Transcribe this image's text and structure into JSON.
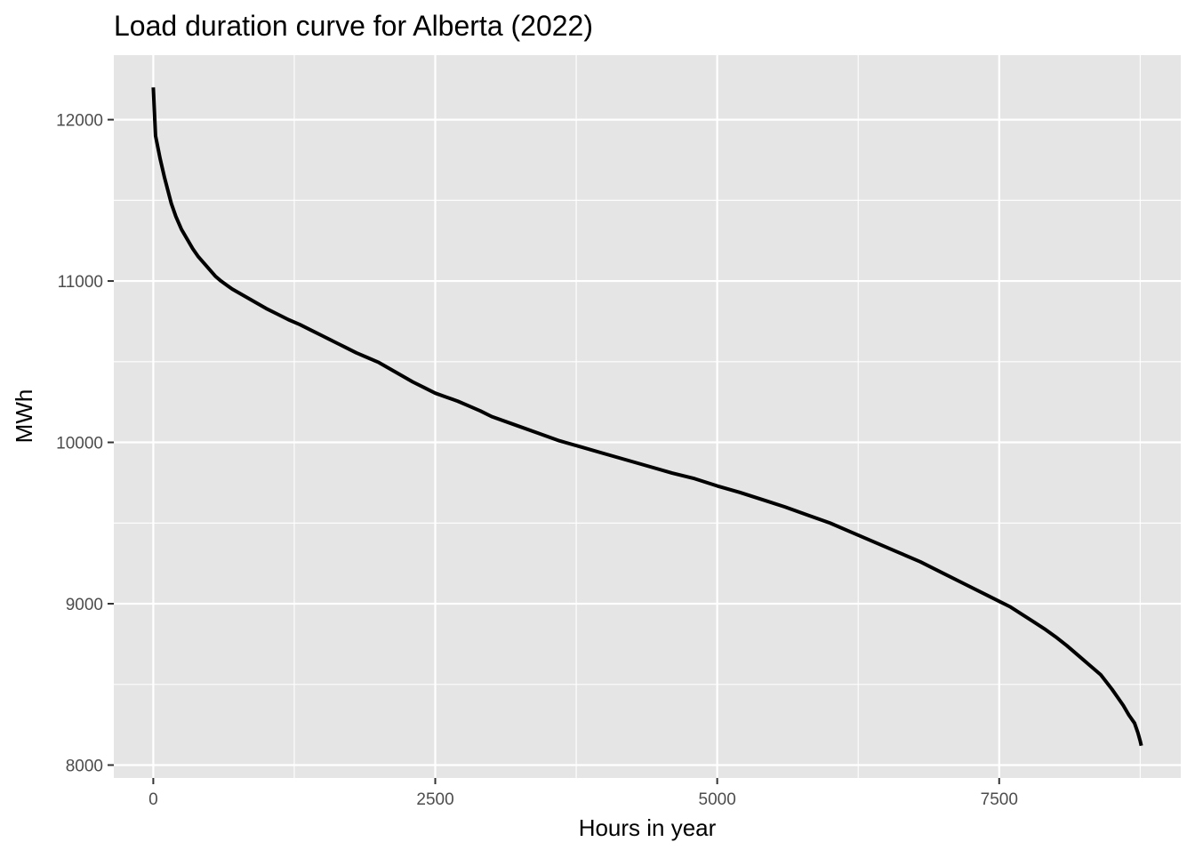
{
  "chart_data": {
    "type": "line",
    "title": "Load duration curve for Alberta (2022)",
    "xlabel": "Hours in year",
    "ylabel": "MWh",
    "xlim": [
      -350,
      9110
    ],
    "ylim": [
      7920,
      12400
    ],
    "x_major_ticks": [
      0,
      2500,
      5000,
      7500
    ],
    "x_tick_labels": [
      "0",
      "2500",
      "5000",
      "7500"
    ],
    "x_minor_ticks": [
      1250,
      3750,
      6250,
      8750
    ],
    "y_major_ticks": [
      8000,
      9000,
      10000,
      11000,
      12000
    ],
    "y_tick_labels": [
      "8000",
      "9000",
      "10000",
      "11000",
      "12000"
    ],
    "y_minor_ticks": [
      8500,
      9500,
      10500,
      11500
    ],
    "grid": true,
    "legend": "none",
    "colors": {
      "panel_background": "#e5e5e5",
      "gridline": "#ffffff",
      "line": "#000000",
      "tick_label": "#4d4d4d"
    },
    "series": [
      {
        "x": [
          0,
          10,
          20,
          40,
          60,
          80,
          100,
          130,
          160,
          200,
          250,
          300,
          350,
          400,
          450,
          500,
          550,
          600,
          650,
          700,
          800,
          900,
          1000,
          1100,
          1200,
          1300,
          1400,
          1500,
          1600,
          1700,
          1800,
          1900,
          2000,
          2100,
          2200,
          2300,
          2400,
          2500,
          2600,
          2700,
          2800,
          2900,
          3000,
          3200,
          3400,
          3600,
          3800,
          4000,
          4200,
          4400,
          4600,
          4800,
          5000,
          5200,
          5400,
          5600,
          5800,
          6000,
          6200,
          6400,
          6600,
          6800,
          7000,
          7200,
          7400,
          7500,
          7600,
          7700,
          7800,
          7900,
          8000,
          8100,
          8200,
          8300,
          8400,
          8500,
          8550,
          8600,
          8650,
          8700,
          8730,
          8750,
          8760
        ],
        "y": [
          12200,
          12050,
          11900,
          11830,
          11760,
          11700,
          11640,
          11560,
          11480,
          11400,
          11320,
          11260,
          11200,
          11150,
          11110,
          11070,
          11030,
          11000,
          10975,
          10950,
          10910,
          10870,
          10830,
          10795,
          10760,
          10730,
          10695,
          10660,
          10625,
          10590,
          10555,
          10525,
          10495,
          10455,
          10415,
          10375,
          10340,
          10305,
          10280,
          10255,
          10225,
          10195,
          10160,
          10110,
          10060,
          10010,
          9970,
          9930,
          9890,
          9850,
          9810,
          9775,
          9730,
          9690,
          9645,
          9600,
          9550,
          9500,
          9440,
          9380,
          9320,
          9260,
          9190,
          9120,
          9050,
          9015,
          8980,
          8935,
          8890,
          8845,
          8795,
          8740,
          8680,
          8620,
          8560,
          8470,
          8420,
          8370,
          8310,
          8260,
          8200,
          8150,
          8120
        ]
      }
    ]
  }
}
